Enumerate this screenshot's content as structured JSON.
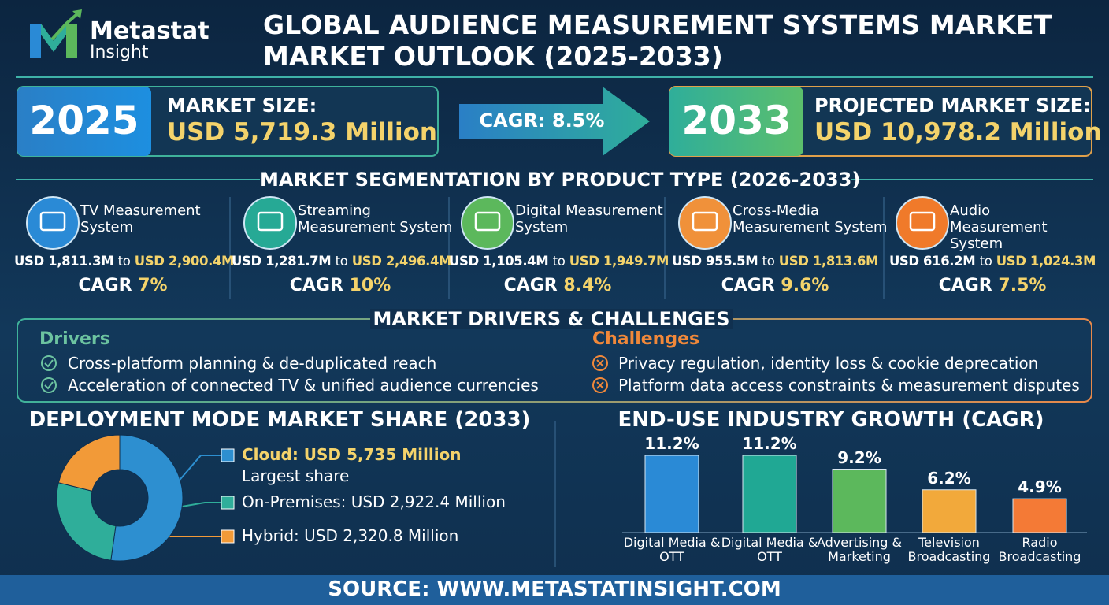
{
  "header": {
    "brand_top": "Metastat",
    "brand_bottom": "Insight",
    "title_line1": "GLOBAL AUDIENCE MEASUREMENT SYSTEMS MARKET",
    "title_line2": "MARKET OUTLOOK (2025-2033)"
  },
  "summary": {
    "start_year": "2025",
    "start_label": "MARKET SIZE:",
    "start_value": "USD 5,719.3 Million",
    "cagr": "CAGR: 8.5%",
    "end_year": "2033",
    "end_label": "PROJECTED MARKET SIZE:",
    "end_value": "USD 10,978.2 Million"
  },
  "segmentation": {
    "title": "MARKET SEGMENTATION BY PRODUCT TYPE (2026-2033)",
    "joiner": "to",
    "cagr_label": "CAGR",
    "items": [
      {
        "name": "TV Measurement System",
        "from": "USD 1,811.3M",
        "to": "USD 2,900.4M",
        "cagr": "7%"
      },
      {
        "name": "Streaming Measurement System",
        "from": "USD 1,281.7M",
        "to": "USD 2,496.4M",
        "cagr": "10%"
      },
      {
        "name": "Digital Measurement System",
        "from": "USD 1,105.4M",
        "to": "USD 1,949.7M",
        "cagr": "8.4%"
      },
      {
        "name": "Cross-Media Measurement System",
        "from": "USD 955.5M",
        "to": "USD 1,813.6M",
        "cagr": "9.6%"
      },
      {
        "name": "Audio Measurement System",
        "from": "USD 616.2M",
        "to": "USD 1,024.3M",
        "cagr": "7.5%"
      }
    ]
  },
  "drivers": {
    "title": "MARKET DRIVERS & CHALLENGES",
    "drivers_heading": "Drivers",
    "drivers": [
      "Cross-platform planning & de-duplicated reach",
      "Acceleration of connected TV & unified audience currencies"
    ],
    "challenges_heading": "Challenges",
    "challenges": [
      "Privacy regulation, identity loss & cookie deprecation",
      "Platform data access constraints & measurement disputes"
    ]
  },
  "chart_data": [
    {
      "type": "pie",
      "title": "DEPLOYMENT MODE MARKET SHARE (2033)",
      "categories": [
        "Cloud: USD 5,735 Million",
        "On-Premises: USD 2,922.4 Million",
        "Hybrid: USD 2,320.8 Million"
      ],
      "values": [
        5735,
        2922.4,
        2320.8
      ],
      "colors": [
        "#2d8fd0",
        "#2fae9a",
        "#f29a38"
      ],
      "annotation": "Largest share"
    },
    {
      "type": "bar",
      "title": "END-USE INDUSTRY GROWTH (CAGR)",
      "categories": [
        "Digital Media & OTT",
        "Digital Media & OTT",
        "Advertising & Marketing",
        "Television Broadcasting",
        "Radio Broadcasting"
      ],
      "values": [
        11.2,
        11.2,
        9.2,
        6.2,
        4.9
      ],
      "value_labels": [
        "11.2%",
        "11.2%",
        "9.2%",
        "6.2%",
        "4.9%"
      ],
      "colors": [
        "#2a8ad6",
        "#20a894",
        "#5cb85c",
        "#f2a93b",
        "#f47a36"
      ]
    }
  ],
  "source": "SOURCE: WWW.METASTATINSIGHT.COM"
}
